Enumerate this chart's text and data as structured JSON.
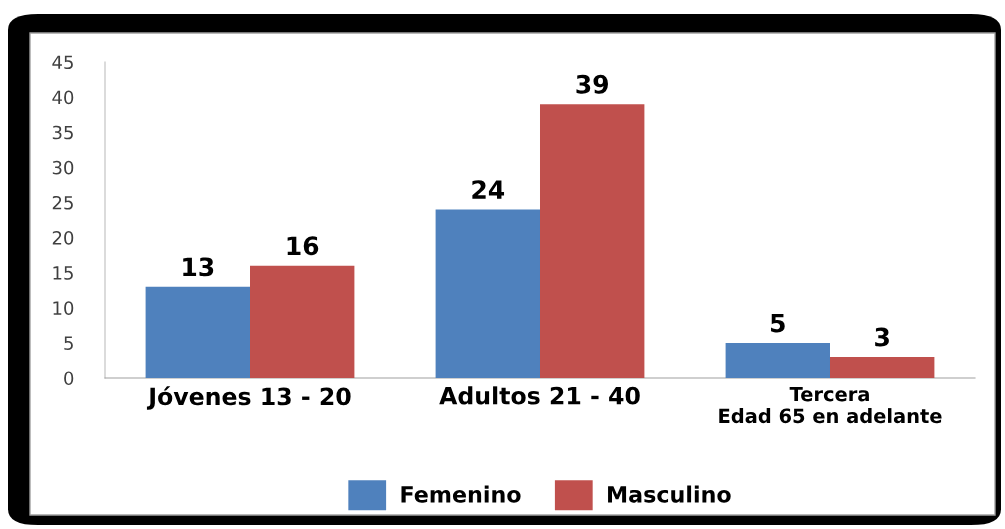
{
  "chart_data": {
    "type": "bar",
    "categories": [
      "Jóvenes 13 - 20",
      "Adultos 21 - 40",
      "Tercera\nEdad 65 en adelante"
    ],
    "series": [
      {
        "name": "Femenino",
        "color": "#4f81bd",
        "values": [
          13,
          24,
          5
        ]
      },
      {
        "name": "Masculino",
        "color": "#c0504d",
        "values": [
          16,
          39,
          3
        ]
      }
    ],
    "ylim": [
      0,
      45
    ],
    "yticks": [
      0,
      5,
      10,
      15,
      20,
      25,
      30,
      35,
      40,
      45
    ],
    "grid": false,
    "legend": "bottom",
    "data_labels": true
  }
}
